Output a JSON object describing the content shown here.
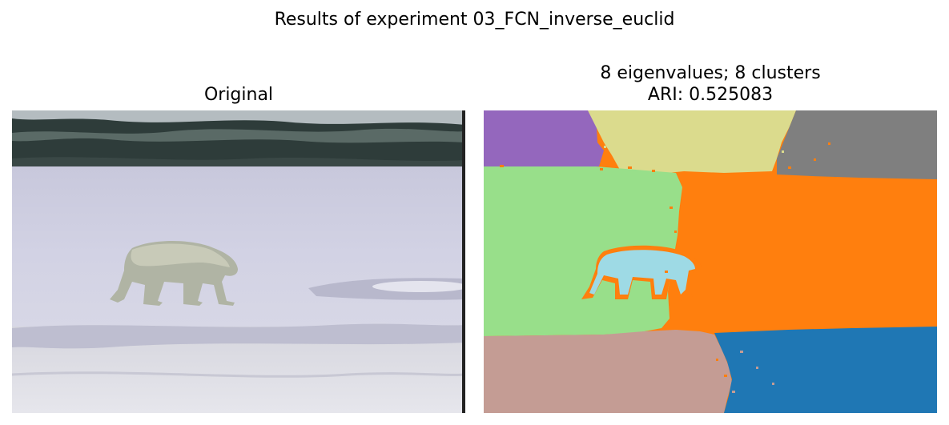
{
  "figure": {
    "suptitle": "Results of experiment 03_FCN_inverse_euclid"
  },
  "left_panel": {
    "title": "Original"
  },
  "right_panel": {
    "title_line1": "8 eigenvalues; 8 clusters",
    "title_line2": "ARI: 0.525083"
  },
  "colors": {
    "purple": "#9467bd",
    "olive": "#dbdb8d",
    "gray": "#7f7f7f",
    "light_green": "#98df8a",
    "orange": "#ff7f0e",
    "light_blue": "#9edae5",
    "tan": "#c49c94",
    "blue": "#1f77b4"
  }
}
